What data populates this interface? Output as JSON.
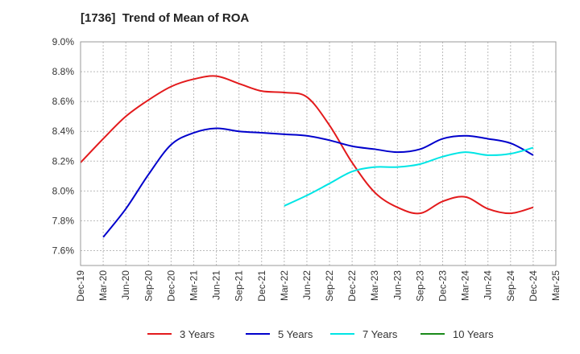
{
  "chart_data": {
    "type": "line",
    "title": "[1736]  Trend of Mean of ROA",
    "xlabel": "",
    "ylabel": "",
    "x": [
      "Dec-19",
      "Mar-20",
      "Jun-20",
      "Sep-20",
      "Dec-20",
      "Mar-21",
      "Jun-21",
      "Sep-21",
      "Dec-21",
      "Mar-22",
      "Jun-22",
      "Sep-22",
      "Dec-22",
      "Mar-23",
      "Jun-23",
      "Sep-23",
      "Dec-23",
      "Mar-24",
      "Jun-24",
      "Sep-24",
      "Dec-24",
      "Mar-25"
    ],
    "ylim": [
      7.5,
      9.0
    ],
    "yticks": [
      "7.6%",
      "7.8%",
      "8.0%",
      "8.2%",
      "8.4%",
      "8.6%",
      "8.8%",
      "9.0%"
    ],
    "ytick_values": [
      7.6,
      7.8,
      8.0,
      8.2,
      8.4,
      8.6,
      8.8,
      9.0
    ],
    "grid": true,
    "legend_position": "bottom",
    "series": [
      {
        "name": "3 Years",
        "color": "#e31a1c",
        "values": [
          8.19,
          8.35,
          8.5,
          8.61,
          8.7,
          8.75,
          8.77,
          8.72,
          8.67,
          8.66,
          8.63,
          8.44,
          8.19,
          7.99,
          7.89,
          7.85,
          7.93,
          7.96,
          7.88,
          7.85,
          7.89,
          null
        ]
      },
      {
        "name": "5 Years",
        "color": "#0000cc",
        "values": [
          null,
          7.69,
          7.88,
          8.11,
          8.31,
          8.39,
          8.42,
          8.4,
          8.39,
          8.38,
          8.37,
          8.34,
          8.3,
          8.28,
          8.26,
          8.28,
          8.35,
          8.37,
          8.35,
          8.32,
          8.24,
          null
        ]
      },
      {
        "name": "7 Years",
        "color": "#00e5e5",
        "values": [
          null,
          null,
          null,
          null,
          null,
          null,
          null,
          null,
          null,
          7.9,
          7.97,
          8.05,
          8.13,
          8.16,
          8.16,
          8.18,
          8.23,
          8.26,
          8.24,
          8.25,
          8.29,
          null
        ]
      },
      {
        "name": "10 Years",
        "color": "#1a8a1a",
        "values": [
          null,
          null,
          null,
          null,
          null,
          null,
          null,
          null,
          null,
          null,
          null,
          null,
          null,
          null,
          null,
          null,
          null,
          null,
          null,
          null,
          null,
          null
        ]
      }
    ]
  }
}
